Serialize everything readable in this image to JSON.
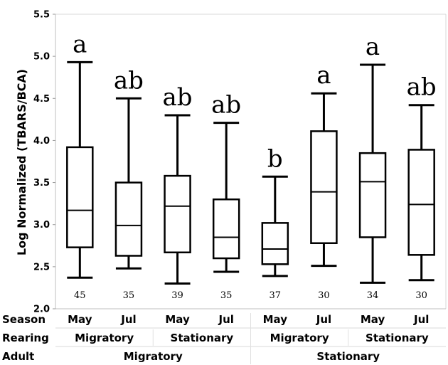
{
  "chart_data": {
    "type": "box",
    "ylabel": "Log Normalized (TBARS/BCA)",
    "ylim": [
      2.0,
      5.5
    ],
    "yticks": [
      "2.0",
      "2.5",
      "3.0",
      "3.5",
      "4.0",
      "4.5",
      "5.0",
      "5.5"
    ],
    "row_headers": [
      "Season",
      "Rearing",
      "Adult"
    ],
    "groups": [
      {
        "season": "May",
        "rearing": "Migratory",
        "adult": "Migratory",
        "min": 2.37,
        "q1": 2.73,
        "median": 3.17,
        "q3": 3.92,
        "max": 4.93,
        "letter": "a",
        "n": "45"
      },
      {
        "season": "Jul",
        "rearing": "Migratory",
        "adult": "Migratory",
        "min": 2.48,
        "q1": 2.63,
        "median": 2.99,
        "q3": 3.5,
        "max": 4.5,
        "letter": "ab",
        "n": "35"
      },
      {
        "season": "May",
        "rearing": "Stationary",
        "adult": "Migratory",
        "min": 2.3,
        "q1": 2.67,
        "median": 3.22,
        "q3": 3.58,
        "max": 4.3,
        "letter": "ab",
        "n": "39"
      },
      {
        "season": "Jul",
        "rearing": "Stationary",
        "adult": "Migratory",
        "min": 2.44,
        "q1": 2.6,
        "median": 2.85,
        "q3": 3.3,
        "max": 4.21,
        "letter": "ab",
        "n": "35"
      },
      {
        "season": "May",
        "rearing": "Migratory",
        "adult": "Stationary",
        "min": 2.39,
        "q1": 2.53,
        "median": 2.71,
        "q3": 3.02,
        "max": 3.57,
        "letter": "b",
        "n": "37"
      },
      {
        "season": "Jul",
        "rearing": "Migratory",
        "adult": "Stationary",
        "min": 2.51,
        "q1": 2.78,
        "median": 3.39,
        "q3": 4.11,
        "max": 4.56,
        "letter": "a",
        "n": "30"
      },
      {
        "season": "May",
        "rearing": "Stationary",
        "adult": "Stationary",
        "min": 2.31,
        "q1": 2.85,
        "median": 3.51,
        "q3": 3.85,
        "max": 4.9,
        "letter": "a",
        "n": "34"
      },
      {
        "season": "Jul",
        "rearing": "Stationary",
        "adult": "Stationary",
        "min": 2.34,
        "q1": 2.64,
        "median": 3.24,
        "q3": 3.89,
        "max": 4.42,
        "letter": "ab",
        "n": "30"
      }
    ],
    "rearing_labels": [
      "Migratory",
      "Stationary",
      "Migratory",
      "Stationary"
    ],
    "adult_labels": [
      "Migratory",
      "Stationary"
    ],
    "grid": false,
    "colors": {
      "box": "#000000",
      "axis": "#bfbfbf"
    }
  }
}
